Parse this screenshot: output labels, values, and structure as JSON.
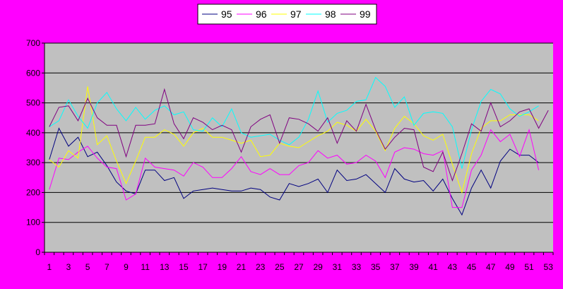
{
  "chart_data": {
    "type": "line",
    "ylim": [
      0,
      700
    ],
    "yticks": [
      0,
      100,
      200,
      300,
      400,
      500,
      600,
      700
    ],
    "x": [
      1,
      2,
      3,
      4,
      5,
      6,
      7,
      8,
      9,
      10,
      11,
      12,
      13,
      14,
      15,
      16,
      17,
      18,
      19,
      20,
      21,
      22,
      23,
      24,
      25,
      26,
      27,
      28,
      29,
      30,
      31,
      32,
      33,
      34,
      35,
      36,
      37,
      38,
      39,
      40,
      41,
      42,
      43,
      44,
      45,
      46,
      47,
      48,
      49,
      50,
      51,
      52,
      53
    ],
    "xtick_labels": [
      "1",
      "3",
      "5",
      "7",
      "9",
      "11",
      "13",
      "15",
      "17",
      "19",
      "21",
      "23",
      "25",
      "27",
      "29",
      "31",
      "33",
      "35",
      "37",
      "39",
      "41",
      "43",
      "45",
      "47",
      "49",
      "51",
      "53"
    ],
    "grid": true,
    "legend_position": "top",
    "plot_background": "#c0c0c0",
    "series": [
      {
        "name": "95",
        "color": "#000080",
        "values": [
          310,
          415,
          355,
          385,
          320,
          335,
          290,
          235,
          205,
          195,
          275,
          275,
          240,
          250,
          180,
          205,
          210,
          215,
          210,
          205,
          205,
          215,
          210,
          185,
          175,
          230,
          220,
          230,
          245,
          200,
          275,
          240,
          245,
          260,
          230,
          200,
          280,
          245,
          235,
          240,
          205,
          245,
          180,
          125,
          215,
          275,
          215,
          305,
          345,
          325,
          325,
          300,
          null
        ]
      },
      {
        "name": "96",
        "color": "#ff00ff",
        "values": [
          210,
          315,
          310,
          335,
          355,
          315,
          285,
          280,
          175,
          195,
          315,
          285,
          280,
          275,
          255,
          300,
          285,
          250,
          250,
          280,
          320,
          270,
          260,
          280,
          260,
          260,
          290,
          300,
          340,
          315,
          325,
          295,
          300,
          325,
          305,
          250,
          335,
          350,
          345,
          330,
          325,
          340,
          150,
          150,
          275,
          325,
          410,
          370,
          395,
          320,
          410,
          275,
          null
        ]
      },
      {
        "name": "97",
        "color": "#ffff00",
        "values": [
          310,
          285,
          340,
          315,
          555,
          360,
          390,
          305,
          230,
          305,
          385,
          385,
          410,
          395,
          355,
          400,
          415,
          385,
          385,
          375,
          365,
          375,
          320,
          325,
          365,
          355,
          350,
          370,
          390,
          405,
          435,
          425,
          405,
          445,
          405,
          340,
          415,
          455,
          430,
          390,
          375,
          395,
          295,
          200,
          330,
          415,
          440,
          440,
          460,
          460,
          460,
          440,
          null
        ]
      },
      {
        "name": "98",
        "color": "#00ffff",
        "values": [
          420,
          440,
          510,
          455,
          415,
          500,
          535,
          480,
          440,
          485,
          445,
          475,
          490,
          460,
          470,
          410,
          405,
          450,
          420,
          480,
          400,
          385,
          390,
          395,
          375,
          360,
          385,
          445,
          540,
          435,
          465,
          475,
          505,
          510,
          585,
          555,
          485,
          520,
          425,
          465,
          470,
          465,
          420,
          280,
          410,
          505,
          545,
          530,
          480,
          455,
          470,
          490,
          null
        ]
      },
      {
        "name": "99",
        "color": "#800080",
        "values": [
          420,
          485,
          490,
          440,
          515,
          450,
          425,
          425,
          320,
          425,
          425,
          430,
          545,
          430,
          380,
          450,
          435,
          410,
          425,
          410,
          335,
          420,
          445,
          460,
          365,
          450,
          445,
          430,
          405,
          450,
          365,
          440,
          405,
          495,
          410,
          345,
          385,
          415,
          410,
          285,
          270,
          335,
          240,
          330,
          430,
          405,
          500,
          420,
          440,
          470,
          480,
          415,
          475
        ]
      }
    ]
  }
}
